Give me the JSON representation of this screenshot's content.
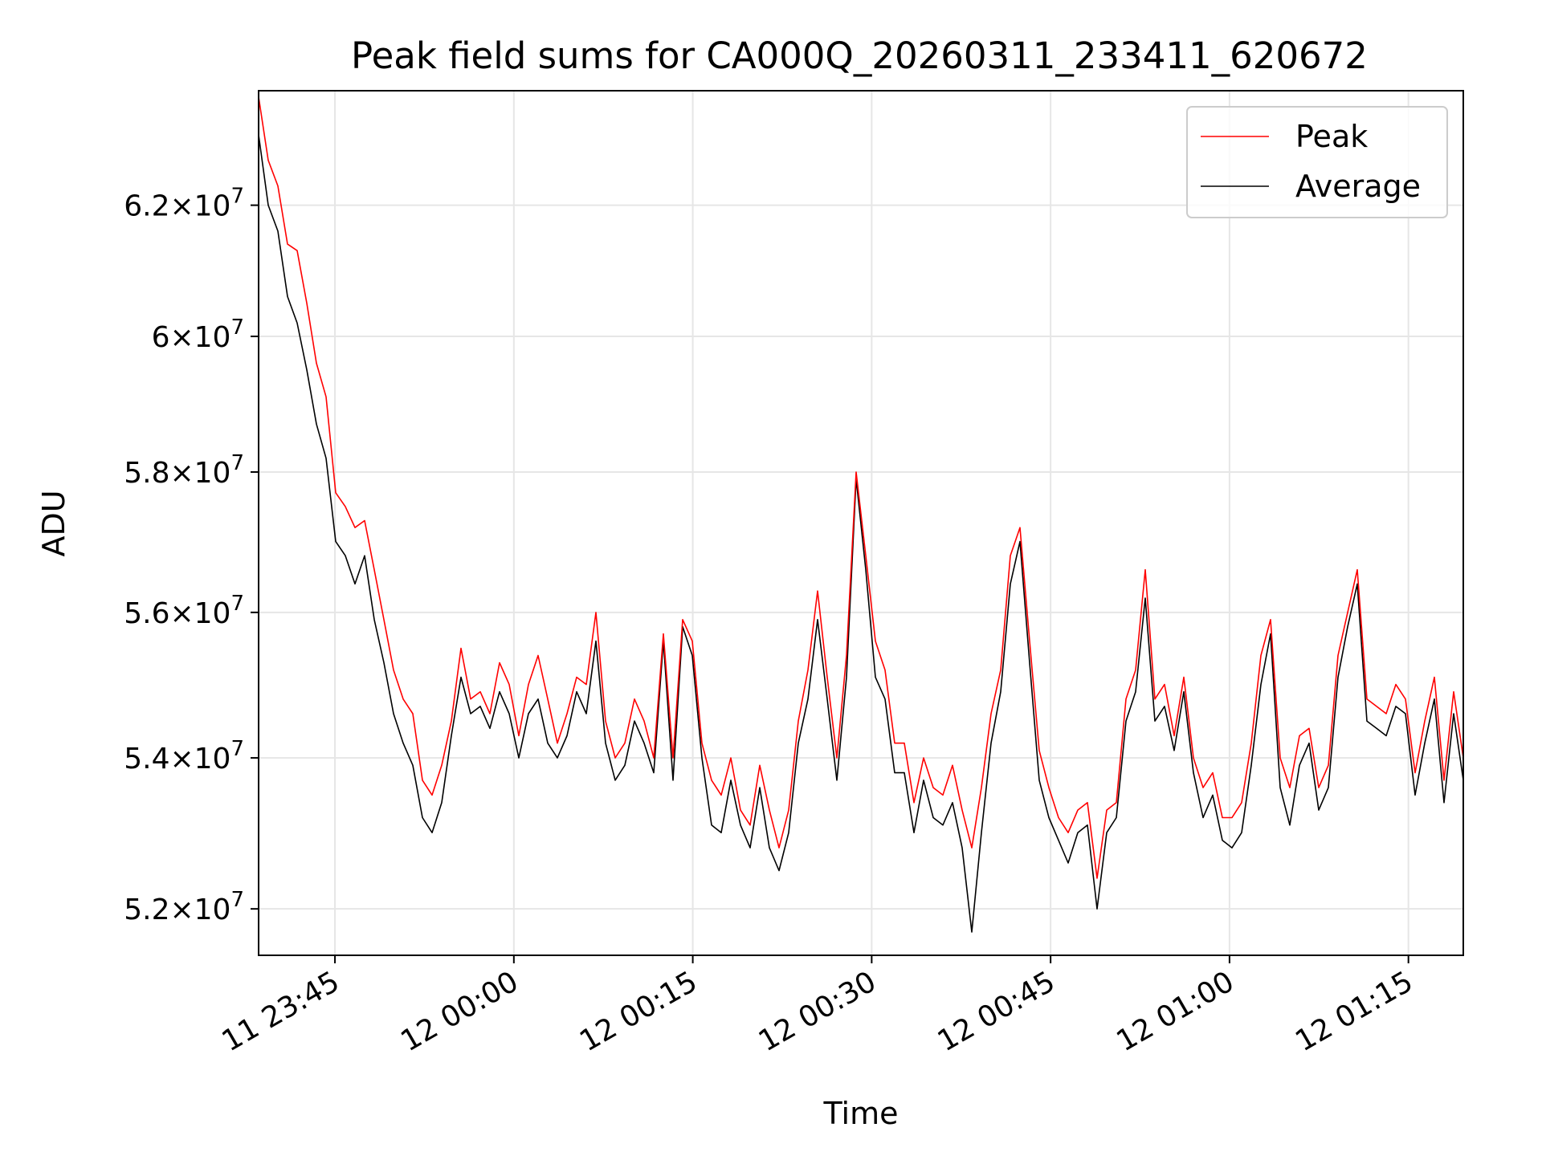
{
  "chart_data": {
    "type": "line",
    "title": "Peak field sums for CA000Q_20260311_233411_620672",
    "xlabel": "Time",
    "ylabel": "ADU",
    "x_start_minutes": -21.4,
    "x_end_minutes": 79.6,
    "xlim_minutes": [
      -21.4,
      79.6
    ],
    "ylim": [
      51400000,
      63800000
    ],
    "x_ticks": [
      {
        "minutes": -15,
        "label": "11 23:45"
      },
      {
        "minutes": 0,
        "label": "12 00:00"
      },
      {
        "minutes": 15,
        "label": "12 00:15"
      },
      {
        "minutes": 30,
        "label": "12 00:30"
      },
      {
        "minutes": 45,
        "label": "12 00:45"
      },
      {
        "minutes": 60,
        "label": "12 01:00"
      },
      {
        "minutes": 75,
        "label": "12 01:15"
      }
    ],
    "y_ticks": [
      {
        "value": 52000000,
        "mantissa": "5.2",
        "exponent": "7"
      },
      {
        "value": 54000000,
        "mantissa": "5.4",
        "exponent": "7"
      },
      {
        "value": 56000000,
        "mantissa": "5.6",
        "exponent": "7"
      },
      {
        "value": 58000000,
        "mantissa": "5.8",
        "exponent": "7"
      },
      {
        "value": 60000000,
        "mantissa": "6",
        "exponent": "7"
      },
      {
        "value": 62000000,
        "mantissa": "6.2",
        "exponent": "7"
      }
    ],
    "y_tick_times": "×10",
    "grid": true,
    "legend_position": "top-right",
    "series": [
      {
        "name": "Peak",
        "color": "#ff0000",
        "values": [
          63.7,
          62.7,
          62.3,
          61.4,
          61.3,
          60.5,
          59.6,
          59.1,
          57.7,
          57.5,
          57.2,
          57.3,
          56.6,
          55.9,
          55.2,
          54.8,
          54.6,
          53.7,
          53.5,
          53.9,
          54.5,
          55.5,
          54.8,
          54.9,
          54.6,
          55.3,
          55.0,
          54.3,
          55.0,
          55.4,
          54.8,
          54.2,
          54.6,
          55.1,
          55.0,
          56.0,
          54.5,
          54.0,
          54.2,
          54.8,
          54.5,
          54.0,
          55.7,
          54.0,
          55.9,
          55.6,
          54.2,
          53.7,
          53.5,
          54.0,
          53.3,
          53.1,
          53.9,
          53.3,
          52.8,
          53.3,
          54.5,
          55.2,
          56.3,
          55.1,
          54.0,
          55.4,
          58.0,
          56.8,
          55.6,
          55.2,
          54.2,
          54.2,
          53.4,
          54.0,
          53.6,
          53.5,
          53.9,
          53.3,
          52.8,
          53.6,
          54.6,
          55.2,
          56.8,
          57.2,
          55.6,
          54.1,
          53.6,
          53.2,
          53.0,
          53.3,
          53.4,
          52.4,
          53.3,
          53.4,
          54.8,
          55.2,
          56.6,
          54.8,
          55.0,
          54.3,
          55.1,
          54.0,
          53.6,
          53.8,
          53.2,
          53.2,
          53.4,
          54.2,
          55.4,
          55.9,
          54.0,
          53.6,
          54.3,
          54.4,
          53.6,
          53.9,
          55.4,
          56.0,
          56.6,
          54.8,
          54.7,
          54.6,
          55.0,
          54.8,
          53.8,
          54.5,
          55.1,
          53.7,
          54.9,
          54.0
        ]
      },
      {
        "name": "Average",
        "color": "#000000",
        "values": [
          63.1,
          62.0,
          61.6,
          60.6,
          60.2,
          59.5,
          58.7,
          58.2,
          57.0,
          56.8,
          56.4,
          56.8,
          55.9,
          55.3,
          54.6,
          54.2,
          53.9,
          53.2,
          53.0,
          53.4,
          54.3,
          55.1,
          54.6,
          54.7,
          54.4,
          54.9,
          54.6,
          54.0,
          54.6,
          54.8,
          54.2,
          54.0,
          54.3,
          54.9,
          54.6,
          55.6,
          54.2,
          53.7,
          53.9,
          54.5,
          54.2,
          53.8,
          55.6,
          53.7,
          55.8,
          55.4,
          54.0,
          53.1,
          53.0,
          53.7,
          53.1,
          52.8,
          53.6,
          52.8,
          52.5,
          53.0,
          54.2,
          54.8,
          55.9,
          54.8,
          53.7,
          55.1,
          57.9,
          56.6,
          55.1,
          54.8,
          53.8,
          53.8,
          53.0,
          53.7,
          53.2,
          53.1,
          53.4,
          52.8,
          51.7,
          53.0,
          54.2,
          54.9,
          56.4,
          57.0,
          55.3,
          53.7,
          53.2,
          52.9,
          52.6,
          53.0,
          53.1,
          52.0,
          53.0,
          53.2,
          54.5,
          54.9,
          56.2,
          54.5,
          54.7,
          54.1,
          54.9,
          53.8,
          53.2,
          53.5,
          52.9,
          52.8,
          53.0,
          53.9,
          55.0,
          55.7,
          53.6,
          53.1,
          53.9,
          54.2,
          53.3,
          53.6,
          55.1,
          55.8,
          56.4,
          54.5,
          54.4,
          54.3,
          54.7,
          54.6,
          53.5,
          54.2,
          54.8,
          53.4,
          54.6,
          53.7
        ]
      }
    ]
  }
}
